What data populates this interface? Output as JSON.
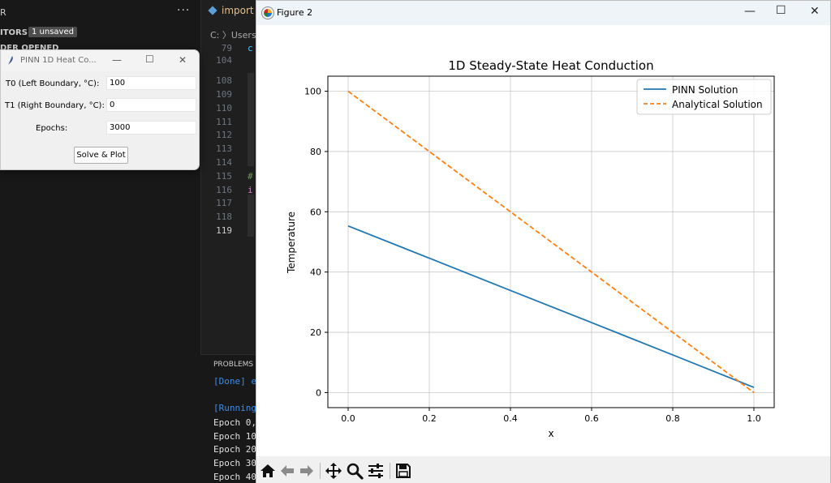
{
  "vscode": {
    "sidebar": {
      "top_label": "R",
      "editors_label": "ITORS",
      "unsaved_badge": "1 unsaved",
      "folder_label": "DER OPENED"
    },
    "editor": {
      "tab_label": "import r",
      "breadcrumb": "C: 〉Users",
      "line_numbers": [
        "79",
        "104",
        "108",
        "109",
        "110",
        "111",
        "112",
        "113",
        "114",
        "115",
        "116",
        "117",
        "118",
        "119"
      ],
      "code_c": "c",
      "code_hash": "#",
      "code_i": "i"
    },
    "terminal": {
      "panel_title": "PROBLEMS",
      "lines": [
        "[Done] e",
        "[Running",
        "Epoch 0,",
        "Epoch 10",
        "Epoch 20",
        "Epoch 30",
        "Epoch 40"
      ]
    }
  },
  "tk_dialog": {
    "title": "PINN 1D Heat Co...",
    "fields": [
      {
        "label": "T0 (Left Boundary, °C):",
        "value": "100"
      },
      {
        "label": "T1 (Right Boundary, °C):",
        "value": "0"
      },
      {
        "label": "Epochs:",
        "value": "3000"
      }
    ],
    "button_label": "Solve & Plot"
  },
  "figure_window": {
    "title": "Figure 2",
    "toolbar_icons": [
      "home-icon",
      "back-arrow-icon",
      "forward-arrow-icon",
      "pan-icon",
      "zoom-icon",
      "configure-subplots-icon",
      "save-icon"
    ]
  },
  "chart_data": {
    "type": "line",
    "title": "1D Steady-State Heat Conduction",
    "xlabel": "x",
    "ylabel": "Temperature",
    "xlim": [
      -0.05,
      1.05
    ],
    "ylim": [
      -5,
      105
    ],
    "xticks": [
      "0.0",
      "0.2",
      "0.4",
      "0.6",
      "0.8",
      "1.0"
    ],
    "yticks": [
      "0",
      "20",
      "40",
      "60",
      "80",
      "100"
    ],
    "grid": true,
    "legend_position": "top-right",
    "series": [
      {
        "name": "PINN Solution",
        "color": "#1f77b4",
        "style": "solid",
        "x": [
          0.0,
          0.2,
          0.4,
          0.6,
          0.8,
          1.0
        ],
        "y": [
          55.3,
          44.6,
          33.9,
          23.2,
          12.5,
          1.7
        ]
      },
      {
        "name": "Analytical Solution",
        "color": "#ff7f0e",
        "style": "dashed",
        "x": [
          0.0,
          1.0
        ],
        "y": [
          100,
          0
        ]
      }
    ]
  }
}
